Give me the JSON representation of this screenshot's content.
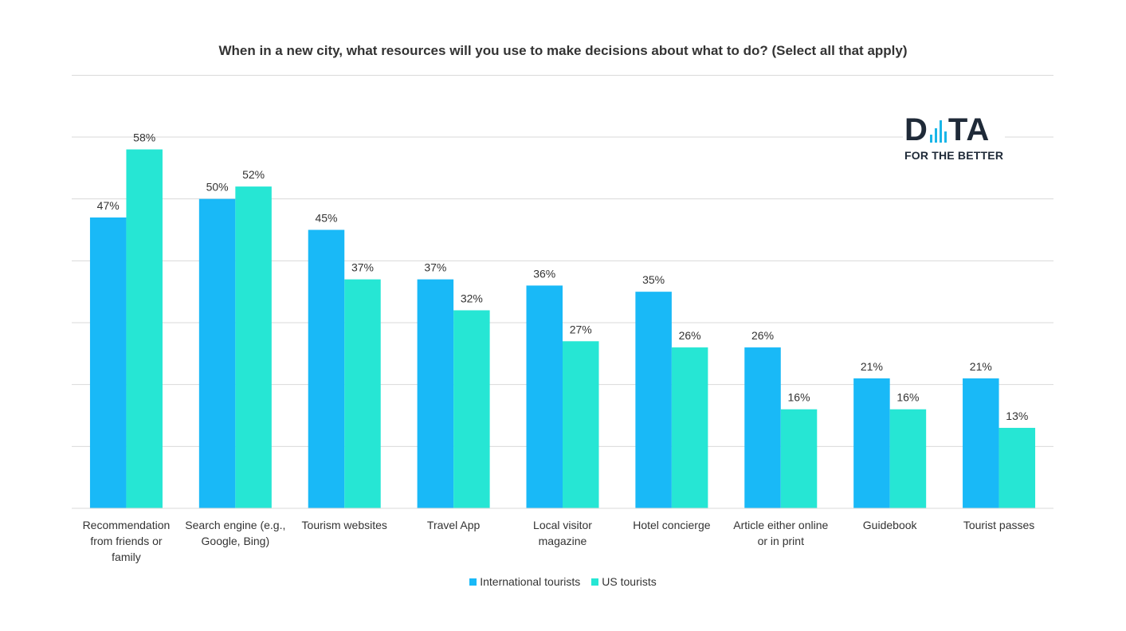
{
  "chart_data": {
    "type": "bar",
    "title": "When in a new city, what resources will you use to make decisions about what to do? (Select all that apply)",
    "categories": [
      "Recommendation from friends or family",
      "Search engine (e.g., Google, Bing)",
      "Tourism websites",
      "Travel App",
      "Local visitor magazine",
      "Hotel concierge",
      "Article either online or in print",
      "Guidebook",
      "Tourist passes"
    ],
    "category_lines": [
      [
        "Recommendation",
        "from friends or",
        "family"
      ],
      [
        "Search engine (e.g.,",
        "Google, Bing)"
      ],
      [
        "Tourism websites"
      ],
      [
        "Travel App"
      ],
      [
        "Local visitor",
        "magazine"
      ],
      [
        "Hotel concierge"
      ],
      [
        "Article either online",
        "or in print"
      ],
      [
        "Guidebook"
      ],
      [
        "Tourist passes"
      ]
    ],
    "series": [
      {
        "name": "International tourists",
        "color": "#19b9f7",
        "values": [
          47,
          50,
          45,
          37,
          36,
          35,
          26,
          21,
          21
        ]
      },
      {
        "name": "US tourists",
        "color": "#26e6d4",
        "values": [
          58,
          52,
          37,
          32,
          27,
          26,
          16,
          16,
          13
        ]
      }
    ],
    "value_suffix": "%",
    "ylim": [
      0,
      60
    ],
    "grid": true,
    "legend_position": "bottom"
  },
  "logo": {
    "word_left": "D",
    "word_right": "TA",
    "tagline": "FOR THE BETTER",
    "bar_color": "#19b6e8"
  }
}
